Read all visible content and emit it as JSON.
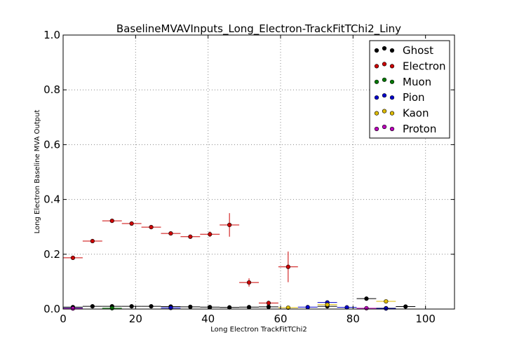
{
  "chart_data": {
    "type": "scatter",
    "title": "BaselineMVAVInputs_Long_Electron-TrackFitTChi2_Liny",
    "xlabel": "Long Electron TrackFitTChi2",
    "ylabel": "Long Electron Baseline MVA Output",
    "xlim": [
      0,
      108
    ],
    "ylim": [
      0,
      1.0
    ],
    "x_ticks": [
      "0",
      "20",
      "40",
      "60",
      "80",
      "100"
    ],
    "y_ticks": [
      "0.0",
      "0.2",
      "0.4",
      "0.6",
      "0.8",
      "1.0"
    ],
    "x_tick_values": [
      0,
      20,
      40,
      60,
      80,
      100
    ],
    "y_tick_values": [
      0,
      0.2,
      0.4,
      0.6,
      0.8,
      1.0
    ],
    "grid": true,
    "legend_position": "top-right",
    "bin_half_width": 2.7,
    "series": [
      {
        "name": "Ghost",
        "color": "#000000",
        "points": [
          {
            "x": 2.7,
            "y": 0.007,
            "err": 0.002
          },
          {
            "x": 8.1,
            "y": 0.01,
            "err": 0.002
          },
          {
            "x": 13.5,
            "y": 0.01,
            "err": 0.002
          },
          {
            "x": 18.9,
            "y": 0.01,
            "err": 0.002
          },
          {
            "x": 24.3,
            "y": 0.01,
            "err": 0.002
          },
          {
            "x": 29.7,
            "y": 0.009,
            "err": 0.002
          },
          {
            "x": 35.1,
            "y": 0.008,
            "err": 0.002
          },
          {
            "x": 40.5,
            "y": 0.007,
            "err": 0.002
          },
          {
            "x": 45.9,
            "y": 0.006,
            "err": 0.002
          },
          {
            "x": 51.3,
            "y": 0.007,
            "err": 0.002
          },
          {
            "x": 56.7,
            "y": 0.008,
            "err": 0.002
          },
          {
            "x": 72.9,
            "y": 0.01,
            "err": 0.003
          },
          {
            "x": 83.7,
            "y": 0.038,
            "err": 0.005
          },
          {
            "x": 89.1,
            "y": 0.003,
            "err": 0.002
          },
          {
            "x": 94.5,
            "y": 0.009,
            "err": 0.003
          }
        ]
      },
      {
        "name": "Electron",
        "color": "#cc0000",
        "points": [
          {
            "x": 2.7,
            "y": 0.187,
            "err": 0.004
          },
          {
            "x": 8.1,
            "y": 0.248,
            "err": 0.004
          },
          {
            "x": 13.5,
            "y": 0.322,
            "err": 0.004
          },
          {
            "x": 18.9,
            "y": 0.312,
            "err": 0.004
          },
          {
            "x": 24.3,
            "y": 0.299,
            "err": 0.004
          },
          {
            "x": 29.7,
            "y": 0.276,
            "err": 0.004
          },
          {
            "x": 35.1,
            "y": 0.264,
            "err": 0.005
          },
          {
            "x": 40.5,
            "y": 0.273,
            "err": 0.01
          },
          {
            "x": 45.9,
            "y": 0.307,
            "err": 0.043
          },
          {
            "x": 51.3,
            "y": 0.097,
            "err": 0.015
          },
          {
            "x": 56.7,
            "y": 0.022,
            "err": 0.008
          },
          {
            "x": 62.1,
            "y": 0.154,
            "err": 0.056
          }
        ]
      },
      {
        "name": "Muon",
        "color": "#007700",
        "points": [
          {
            "x": 2.7,
            "y": 0.003,
            "err": 0.001
          },
          {
            "x": 13.5,
            "y": 0.003,
            "err": 0.001
          }
        ]
      },
      {
        "name": "Pion",
        "color": "#0000cc",
        "points": [
          {
            "x": 2.7,
            "y": 0.003,
            "err": 0.001
          },
          {
            "x": 29.7,
            "y": 0.004,
            "err": 0.001
          },
          {
            "x": 67.5,
            "y": 0.007,
            "err": 0.002
          },
          {
            "x": 72.9,
            "y": 0.024,
            "err": 0.004
          },
          {
            "x": 78.3,
            "y": 0.006,
            "err": 0.002
          },
          {
            "x": 89.1,
            "y": 0.002,
            "err": 0.001
          }
        ]
      },
      {
        "name": "Kaon",
        "color": "#ddbb00",
        "points": [
          {
            "x": 62.1,
            "y": 0.005,
            "err": 0.002
          },
          {
            "x": 72.9,
            "y": 0.016,
            "err": 0.004
          },
          {
            "x": 89.1,
            "y": 0.028,
            "err": 0.005
          }
        ]
      },
      {
        "name": "Proton",
        "color": "#bb00bb",
        "points": [
          {
            "x": 2.7,
            "y": 0.002,
            "err": 0.001
          },
          {
            "x": 83.7,
            "y": 0.003,
            "err": 0.001
          }
        ]
      }
    ]
  }
}
